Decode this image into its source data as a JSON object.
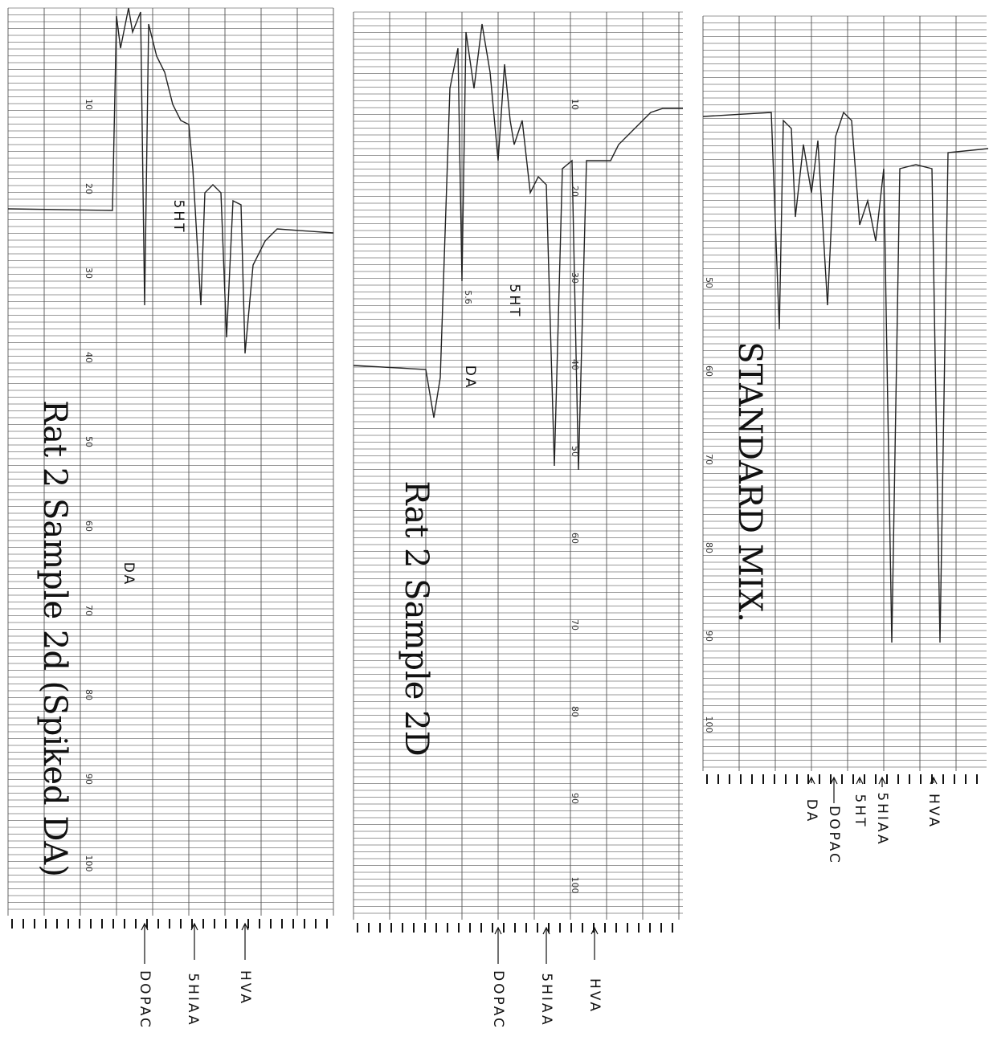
{
  "panels": [
    {
      "label": "Rat 2 Sample 2d (Spiked DA)",
      "scale": [
        "10",
        "20",
        "30",
        "40",
        "50",
        "60",
        "70",
        "80",
        "90",
        "100"
      ],
      "peaks": [
        "5HT",
        "DA",
        "DOPAC",
        "5HIAA",
        "HVA"
      ]
    },
    {
      "label": "Rat 2 Sample 2D",
      "note": "5.6",
      "scale": [
        "10",
        "20",
        "30",
        "40",
        "50",
        "60",
        "70",
        "80",
        "90",
        "100"
      ],
      "peaks": [
        "DA",
        "5HT",
        "DOPAC",
        "5HIAA",
        "HVA"
      ]
    },
    {
      "label": "STANDARD MIX.",
      "scale": [
        "50",
        "60",
        "70",
        "80",
        "90",
        "100"
      ],
      "peaks": [
        "DA",
        "DOPAC",
        "5HT",
        "5HIAA",
        "HVA"
      ]
    }
  ]
}
